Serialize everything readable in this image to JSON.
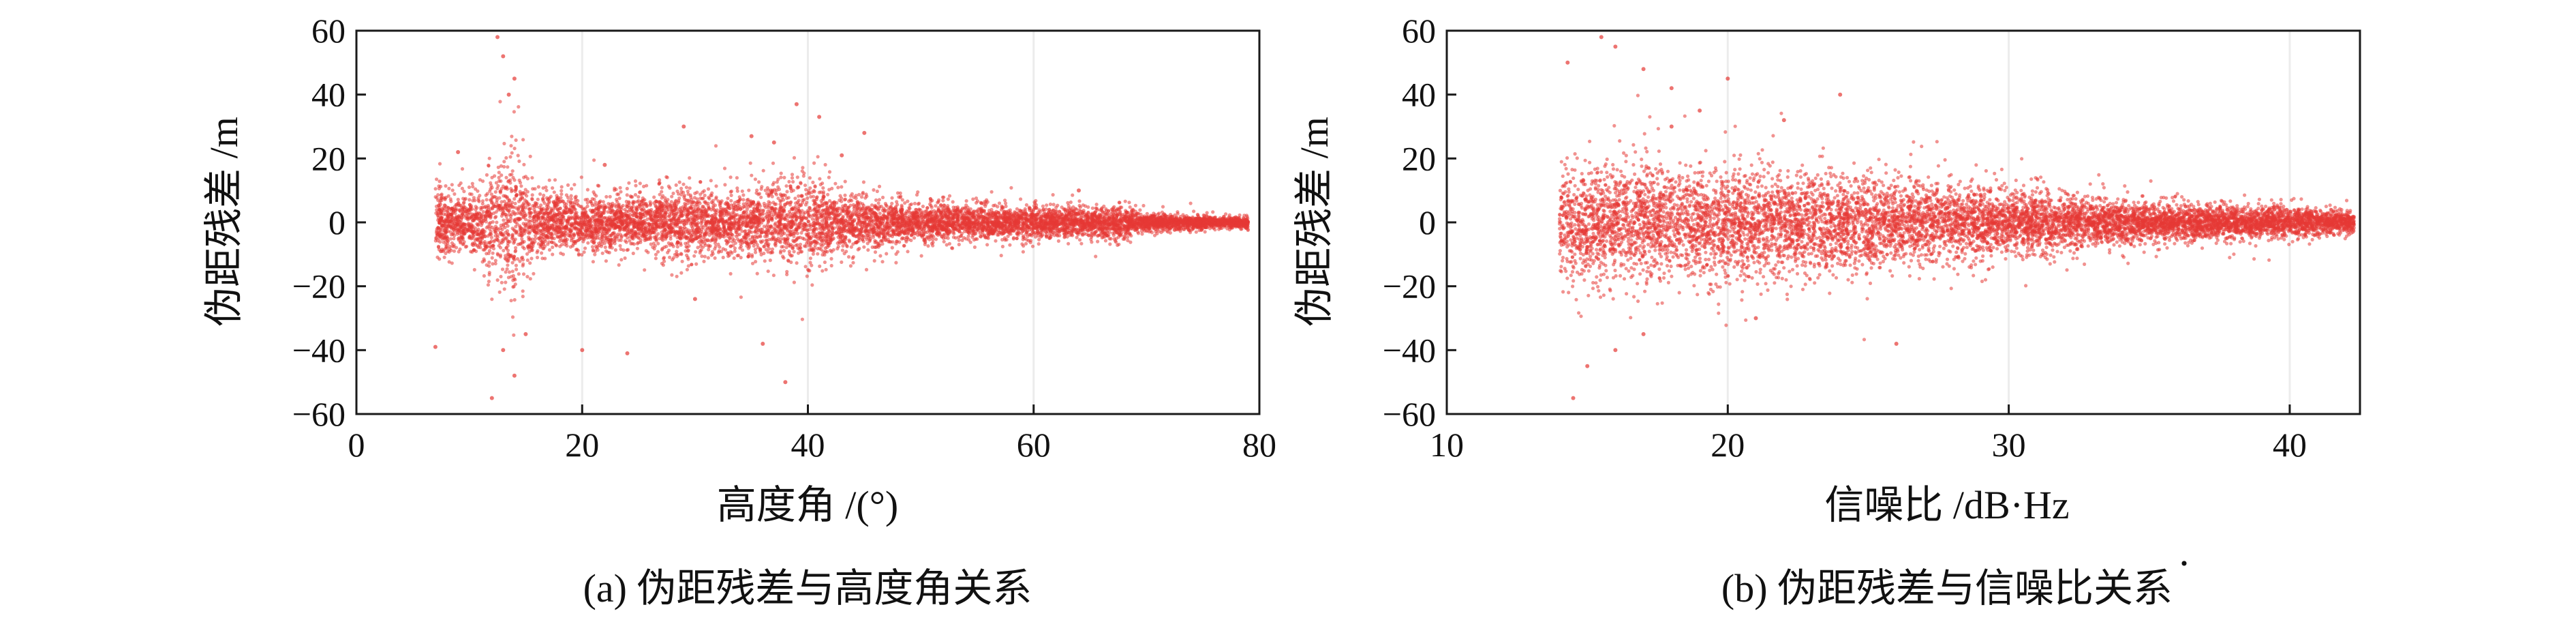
{
  "chart_data": [
    {
      "type": "scatter",
      "caption": "(a) 伪距残差与高度角关系",
      "xlabel": "高度角 /(°)",
      "ylabel": "伪距残差 /m",
      "xlim": [
        0,
        80
      ],
      "ylim": [
        -60,
        60
      ],
      "xticks": [
        0,
        20,
        40,
        60,
        80
      ],
      "yticks": [
        -60,
        -40,
        -20,
        0,
        20,
        40,
        60
      ],
      "grid": true,
      "color": "#e53935",
      "envelope": [
        {
          "x": 7,
          "halfwidth": 12
        },
        {
          "x": 10,
          "halfwidth": 10
        },
        {
          "x": 12,
          "halfwidth": 20
        },
        {
          "x": 14,
          "halfwidth": 28
        },
        {
          "x": 16,
          "halfwidth": 12
        },
        {
          "x": 20,
          "halfwidth": 10
        },
        {
          "x": 25,
          "halfwidth": 10
        },
        {
          "x": 29,
          "halfwidth": 14
        },
        {
          "x": 32,
          "halfwidth": 10
        },
        {
          "x": 36,
          "halfwidth": 14
        },
        {
          "x": 40,
          "halfwidth": 15
        },
        {
          "x": 45,
          "halfwidth": 9
        },
        {
          "x": 50,
          "halfwidth": 7
        },
        {
          "x": 55,
          "halfwidth": 6
        },
        {
          "x": 60,
          "halfwidth": 6
        },
        {
          "x": 65,
          "halfwidth": 5
        },
        {
          "x": 68,
          "halfwidth": 6
        },
        {
          "x": 70,
          "halfwidth": 3
        },
        {
          "x": 79,
          "halfwidth": 2
        }
      ],
      "outliers": [
        {
          "x": 12.5,
          "y": 58
        },
        {
          "x": 13,
          "y": 52
        },
        {
          "x": 14,
          "y": 45
        },
        {
          "x": 13.5,
          "y": 40
        },
        {
          "x": 12,
          "y": -55
        },
        {
          "x": 14,
          "y": -48
        },
        {
          "x": 13,
          "y": -40
        },
        {
          "x": 15,
          "y": -35
        },
        {
          "x": 7,
          "y": -39
        },
        {
          "x": 20,
          "y": -40
        },
        {
          "x": 24,
          "y": -41
        },
        {
          "x": 29,
          "y": 30
        },
        {
          "x": 35,
          "y": 27
        },
        {
          "x": 36,
          "y": -38
        },
        {
          "x": 38,
          "y": -50
        },
        {
          "x": 39,
          "y": 37
        },
        {
          "x": 41,
          "y": 33
        },
        {
          "x": 37,
          "y": 25
        },
        {
          "x": 43,
          "y": 21
        },
        {
          "x": 45,
          "y": 28
        },
        {
          "x": 9,
          "y": 22
        },
        {
          "x": 22,
          "y": 18
        },
        {
          "x": 30,
          "y": -24
        },
        {
          "x": 64,
          "y": 10
        }
      ]
    },
    {
      "type": "scatter",
      "caption": "(b) 伪距残差与信噪比关系",
      "xlabel": "信噪比 /dB·Hz",
      "ylabel": "伪距残差 /m",
      "xlim": [
        10,
        42.5
      ],
      "ylim": [
        -60,
        60
      ],
      "xticks": [
        10,
        20,
        30,
        40
      ],
      "yticks": [
        -60,
        -40,
        -20,
        0,
        20,
        40,
        60
      ],
      "grid": true,
      "color": "#e53935",
      "envelope": [
        {
          "x": 14,
          "halfwidth": 22
        },
        {
          "x": 16,
          "halfwidth": 22
        },
        {
          "x": 18,
          "halfwidth": 20
        },
        {
          "x": 20,
          "halfwidth": 19
        },
        {
          "x": 22,
          "halfwidth": 19
        },
        {
          "x": 25,
          "halfwidth": 17
        },
        {
          "x": 28,
          "halfwidth": 14
        },
        {
          "x": 30,
          "halfwidth": 12
        },
        {
          "x": 33,
          "halfwidth": 9
        },
        {
          "x": 35,
          "halfwidth": 7
        },
        {
          "x": 38,
          "halfwidth": 6
        },
        {
          "x": 40,
          "halfwidth": 5
        },
        {
          "x": 42.3,
          "halfwidth": 4
        }
      ],
      "outliers": [
        {
          "x": 14.5,
          "y": -55
        },
        {
          "x": 15,
          "y": -45
        },
        {
          "x": 15.5,
          "y": 58
        },
        {
          "x": 16,
          "y": 55
        },
        {
          "x": 14.3,
          "y": 50
        },
        {
          "x": 17,
          "y": 48
        },
        {
          "x": 18,
          "y": 42
        },
        {
          "x": 20,
          "y": 45
        },
        {
          "x": 19,
          "y": 35
        },
        {
          "x": 16,
          "y": -40
        },
        {
          "x": 17,
          "y": -35
        },
        {
          "x": 24,
          "y": 40
        },
        {
          "x": 26,
          "y": -38
        },
        {
          "x": 22,
          "y": 32
        },
        {
          "x": 21,
          "y": -30
        },
        {
          "x": 18,
          "y": 30
        }
      ]
    }
  ],
  "extra_mark": "·"
}
